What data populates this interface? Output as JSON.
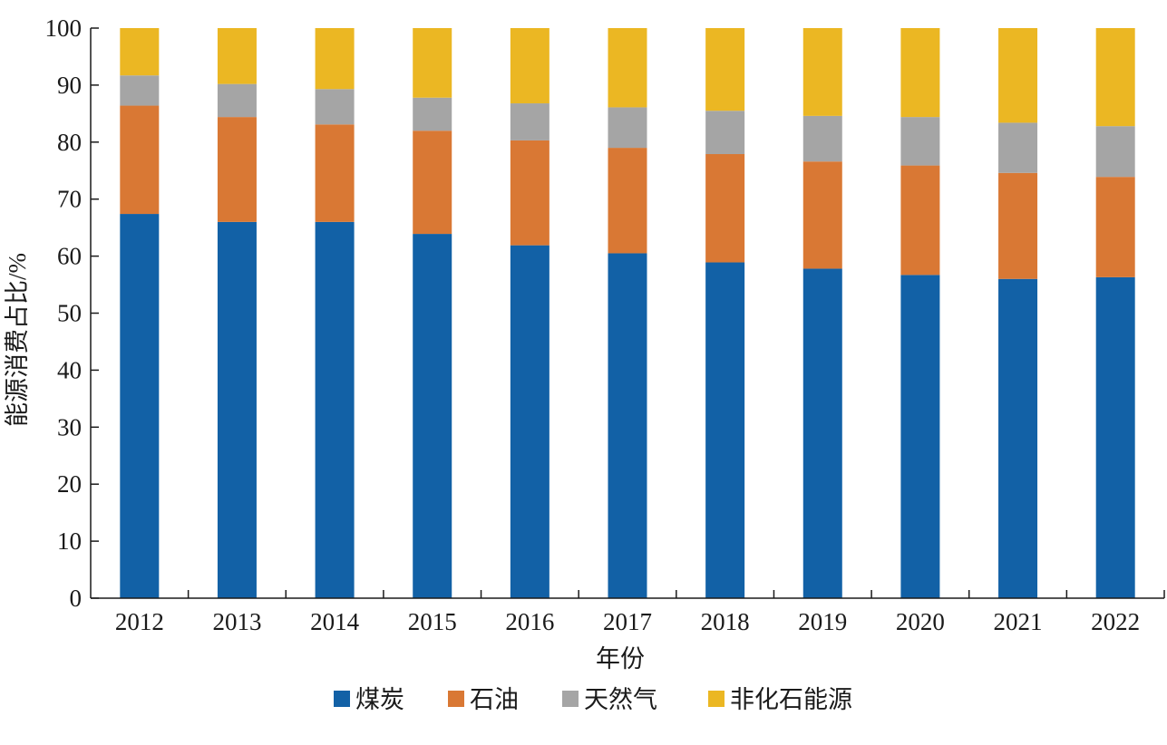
{
  "chart_data": {
    "type": "bar",
    "stacked": true,
    "xlabel": "年份",
    "ylabel": "能源消费占比/%",
    "ylim": [
      0,
      100
    ],
    "yticks": [
      0,
      10,
      20,
      30,
      40,
      50,
      60,
      70,
      80,
      90,
      100
    ],
    "categories": [
      "2012",
      "2013",
      "2014",
      "2015",
      "2016",
      "2017",
      "2018",
      "2019",
      "2020",
      "2021",
      "2022"
    ],
    "series": [
      {
        "name": "煤炭",
        "color": "#1261a6",
        "values": [
          67.4,
          66.0,
          66.0,
          63.9,
          61.9,
          60.5,
          58.9,
          57.8,
          56.7,
          56.0,
          56.3
        ]
      },
      {
        "name": "石油",
        "color": "#d97834",
        "values": [
          19.0,
          18.4,
          17.1,
          18.1,
          18.4,
          18.5,
          19.0,
          18.8,
          19.2,
          18.6,
          17.6
        ]
      },
      {
        "name": "天然气",
        "color": "#a5a5a5",
        "values": [
          5.3,
          5.8,
          6.2,
          5.8,
          6.5,
          7.1,
          7.6,
          8.0,
          8.5,
          8.8,
          8.9
        ]
      },
      {
        "name": "非化石能源",
        "color": "#ebb723",
        "values": [
          8.3,
          9.8,
          10.7,
          12.2,
          13.2,
          13.9,
          14.5,
          15.4,
          15.6,
          16.6,
          17.2
        ]
      }
    ],
    "grid": false,
    "legend_position": "bottom"
  }
}
